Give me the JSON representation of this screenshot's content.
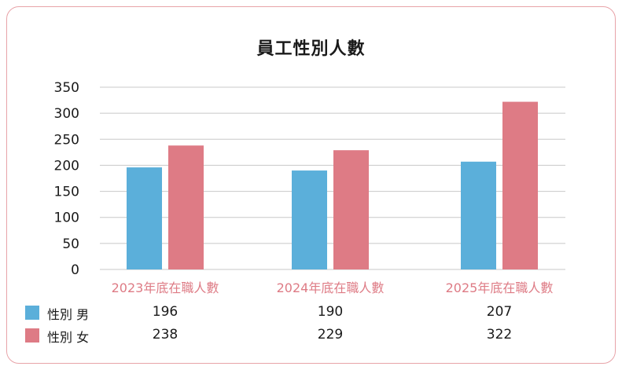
{
  "colors": {
    "male": "#5bafda",
    "female": "#de7b85",
    "category_label": "#de7b85",
    "grid": "#c8c8c8",
    "border": "#e8a3a8"
  },
  "chart_data": {
    "type": "bar",
    "title": "員工性別人數",
    "categories": [
      "2023年底在職人數",
      "2024年底在職人數",
      "2025年底在職人數"
    ],
    "series": [
      {
        "name": "性別 男",
        "values": [
          196,
          190,
          207
        ],
        "color": "#5bafda"
      },
      {
        "name": "性別 女",
        "values": [
          238,
          229,
          322
        ],
        "color": "#de7b85"
      }
    ],
    "y_ticks": [
      "350",
      "300",
      "250",
      "200",
      "150",
      "100",
      "50",
      "0"
    ],
    "ylim": [
      0,
      350
    ],
    "grid": true,
    "legend": "data-table"
  },
  "table": {
    "rows": [
      {
        "label": "性別 男",
        "values": [
          "196",
          "190",
          "207"
        ]
      },
      {
        "label": "性別 女",
        "values": [
          "238",
          "229",
          "322"
        ]
      }
    ]
  }
}
